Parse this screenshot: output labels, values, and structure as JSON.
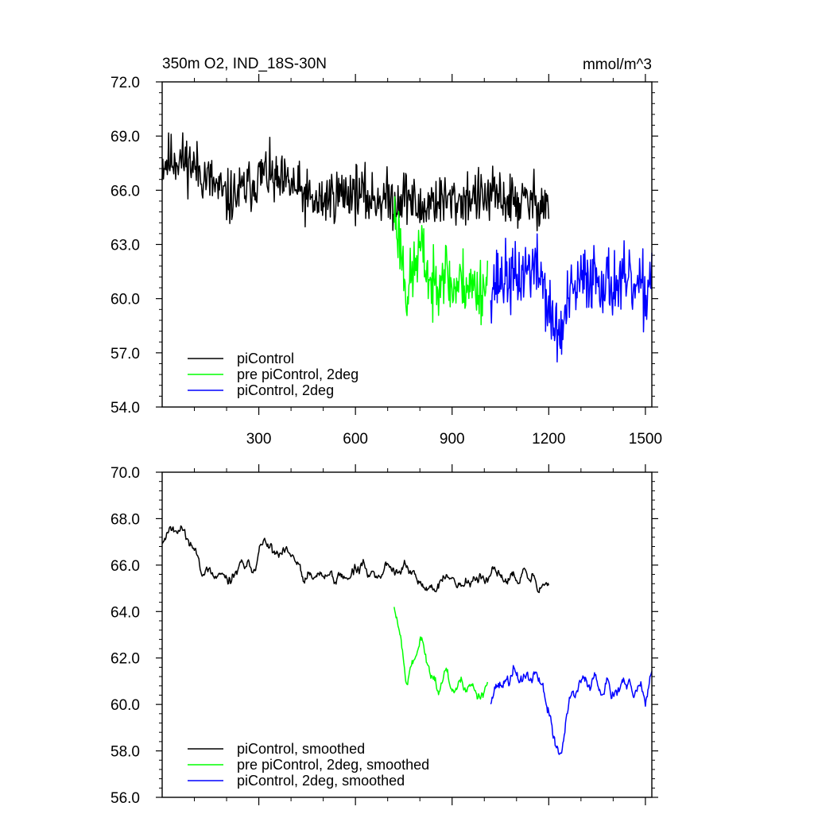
{
  "chart_data": [
    {
      "type": "line",
      "title_left": "350m O2, IND_18S-30N",
      "title_right": "mmol/m^3",
      "xlabel": "",
      "ylabel": "",
      "xlim": [
        0,
        1520
      ],
      "ylim": [
        54,
        72
      ],
      "xticks": [
        300,
        600,
        900,
        1200,
        1500
      ],
      "xtick_labels": [
        "300",
        "600",
        "900",
        "1200",
        "1500"
      ],
      "yticks": [
        54,
        57,
        60,
        63,
        66,
        69,
        72
      ],
      "ytick_labels": [
        "54.0",
        "57.0",
        "60.0",
        "63.0",
        "66.0",
        "69.0",
        "72.0"
      ],
      "legend_position": "bottom-left",
      "series": [
        {
          "name": "piControl",
          "color": "#000000",
          "x_start": 0,
          "x_end": 1200,
          "anchors": [
            [
              0,
              67.5
            ],
            [
              40,
              67.8
            ],
            [
              80,
              67.6
            ],
            [
              120,
              67.0
            ],
            [
              160,
              66.3
            ],
            [
              200,
              65.5
            ],
            [
              240,
              65.8
            ],
            [
              280,
              66.4
            ],
            [
              320,
              67.0
            ],
            [
              360,
              66.3
            ],
            [
              400,
              66.3
            ],
            [
              440,
              65.7
            ],
            [
              480,
              65.2
            ],
            [
              520,
              65.7
            ],
            [
              560,
              65.8
            ],
            [
              600,
              66.0
            ],
            [
              640,
              65.5
            ],
            [
              680,
              65.6
            ],
            [
              720,
              65.4
            ],
            [
              760,
              65.8
            ],
            [
              800,
              64.8
            ],
            [
              840,
              65.5
            ],
            [
              880,
              65.4
            ],
            [
              920,
              65.4
            ],
            [
              960,
              65.7
            ],
            [
              1000,
              65.5
            ],
            [
              1040,
              65.7
            ],
            [
              1080,
              65.4
            ],
            [
              1120,
              65.3
            ],
            [
              1160,
              65.4
            ],
            [
              1200,
              65.3
            ]
          ],
          "noise": 0.95,
          "seed": 11
        },
        {
          "name": "pre piControl, 2deg",
          "color": "#00ff00",
          "x_start": 720,
          "x_end": 1010,
          "anchors": [
            [
              720,
              64.8
            ],
            [
              740,
              63.0
            ],
            [
              760,
              60.2
            ],
            [
              780,
              61.5
            ],
            [
              800,
              62.8
            ],
            [
              820,
              61.8
            ],
            [
              840,
              60.3
            ],
            [
              860,
              61.6
            ],
            [
              880,
              61.6
            ],
            [
              900,
              60.5
            ],
            [
              920,
              60.8
            ],
            [
              940,
              61.0
            ],
            [
              960,
              60.6
            ],
            [
              980,
              60.5
            ],
            [
              1010,
              60.8
            ]
          ],
          "noise": 1.15,
          "seed": 23
        },
        {
          "name": "piControl, 2deg",
          "color": "#0000ff",
          "x_start": 1020,
          "x_end": 1520,
          "anchors": [
            [
              1020,
              60.8
            ],
            [
              1060,
              61.2
            ],
            [
              1100,
              61.0
            ],
            [
              1140,
              61.8
            ],
            [
              1180,
              61.3
            ],
            [
              1200,
              59.2
            ],
            [
              1220,
              58.3
            ],
            [
              1240,
              58.0
            ],
            [
              1260,
              59.8
            ],
            [
              1300,
              60.9
            ],
            [
              1340,
              61.4
            ],
            [
              1380,
              60.9
            ],
            [
              1420,
              60.8
            ],
            [
              1460,
              60.6
            ],
            [
              1500,
              60.2
            ],
            [
              1520,
              61.6
            ]
          ],
          "noise": 1.2,
          "seed": 37
        }
      ]
    },
    {
      "type": "line",
      "xlabel": "",
      "ylabel": "",
      "xlim": [
        0,
        1520
      ],
      "ylim": [
        56,
        70
      ],
      "xticks": [
        300,
        600,
        900,
        1200,
        1500
      ],
      "yticks": [
        56,
        58,
        60,
        62,
        64,
        66,
        68,
        70
      ],
      "ytick_labels": [
        "56.0",
        "58.0",
        "60.0",
        "62.0",
        "64.0",
        "66.0",
        "68.0",
        "70.0"
      ],
      "legend_position": "bottom-left",
      "series": [
        {
          "name": "piControl, smoothed",
          "color": "#000000",
          "x_start": 0,
          "x_end": 1200,
          "anchors": [
            [
              0,
              67.2
            ],
            [
              40,
              67.8
            ],
            [
              80,
              67.2
            ],
            [
              120,
              66.0
            ],
            [
              160,
              65.4
            ],
            [
              200,
              65.3
            ],
            [
              240,
              65.8
            ],
            [
              280,
              66.0
            ],
            [
              320,
              67.0
            ],
            [
              360,
              66.2
            ],
            [
              400,
              66.5
            ],
            [
              440,
              65.3
            ],
            [
              480,
              65.5
            ],
            [
              520,
              65.6
            ],
            [
              560,
              65.4
            ],
            [
              600,
              65.9
            ],
            [
              640,
              65.7
            ],
            [
              680,
              65.7
            ],
            [
              720,
              66.0
            ],
            [
              760,
              65.9
            ],
            [
              800,
              65.2
            ],
            [
              840,
              65.0
            ],
            [
              880,
              65.4
            ],
            [
              920,
              65.2
            ],
            [
              960,
              65.4
            ],
            [
              1000,
              65.3
            ],
            [
              1040,
              65.6
            ],
            [
              1080,
              65.4
            ],
            [
              1120,
              65.5
            ],
            [
              1160,
              65.3
            ],
            [
              1200,
              65.2
            ]
          ],
          "noise": 0.6,
          "seed": 11,
          "smooth": 3
        },
        {
          "name": "pre piControl, 2deg, smoothed",
          "color": "#00ff00",
          "x_start": 720,
          "x_end": 1010,
          "anchors": [
            [
              720,
              64.4
            ],
            [
              740,
              63.0
            ],
            [
              760,
              61.0
            ],
            [
              780,
              61.8
            ],
            [
              800,
              62.6
            ],
            [
              820,
              62.2
            ],
            [
              840,
              60.8
            ],
            [
              860,
              61.2
            ],
            [
              880,
              61.5
            ],
            [
              900,
              60.6
            ],
            [
              920,
              60.8
            ],
            [
              940,
              61.0
            ],
            [
              960,
              60.7
            ],
            [
              980,
              60.5
            ],
            [
              1010,
              60.8
            ]
          ],
          "noise": 0.7,
          "seed": 23,
          "smooth": 3
        },
        {
          "name": "piControl, 2deg, smoothed",
          "color": "#0000ff",
          "x_start": 1020,
          "x_end": 1520,
          "anchors": [
            [
              1020,
              60.6
            ],
            [
              1060,
              61.0
            ],
            [
              1100,
              61.2
            ],
            [
              1140,
              61.2
            ],
            [
              1180,
              61.0
            ],
            [
              1200,
              59.6
            ],
            [
              1220,
              58.2
            ],
            [
              1240,
              57.8
            ],
            [
              1260,
              59.8
            ],
            [
              1300,
              60.8
            ],
            [
              1340,
              61.2
            ],
            [
              1380,
              60.8
            ],
            [
              1420,
              60.6
            ],
            [
              1460,
              60.5
            ],
            [
              1500,
              60.3
            ],
            [
              1520,
              61.6
            ]
          ],
          "noise": 0.75,
          "seed": 37,
          "smooth": 3
        }
      ]
    }
  ]
}
